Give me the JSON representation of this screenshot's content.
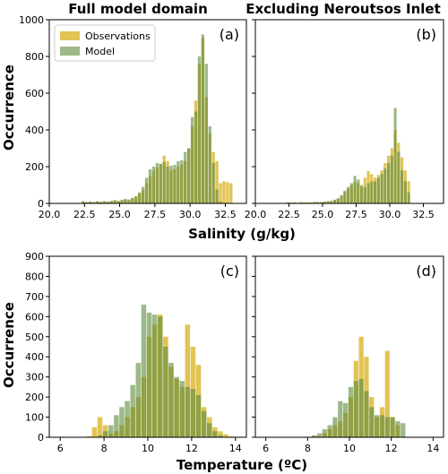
{
  "figure": {
    "col_titles": [
      "Full model domain",
      "Excluding Neroutsos Inlet"
    ],
    "row_ylabel": "Occurrence",
    "top_xlabel": "Salinity (g/kg)",
    "bottom_xlabel": "Temperature (ºC)"
  },
  "colors": {
    "obs": "#d9b52b",
    "model": "#5b8a3a",
    "overlap": "#7a7a1c"
  },
  "chart_data": [
    {
      "type": "bar",
      "panel_label": "(a)",
      "legend": [
        "Observations",
        "Model"
      ],
      "legend_position": "top-left",
      "xlim": [
        20.0,
        34.0
      ],
      "ylim": [
        0,
        1000
      ],
      "xticks": [
        "20.0",
        "22.5",
        "25.0",
        "27.5",
        "30.0",
        "32.5"
      ],
      "yticks": [
        "0",
        "200",
        "400",
        "600",
        "800",
        "1000"
      ],
      "bin_start": 22.3,
      "bin_width": 0.25,
      "series": [
        {
          "name": "Observations",
          "values": [
            10,
            5,
            8,
            6,
            10,
            8,
            10,
            6,
            12,
            15,
            12,
            16,
            22,
            18,
            28,
            35,
            55,
            70,
            110,
            150,
            175,
            195,
            215,
            260,
            230,
            180,
            185,
            200,
            210,
            230,
            300,
            420,
            560,
            760,
            900,
            580,
            380,
            280,
            230,
            110,
            120,
            115,
            110
          ]
        },
        {
          "name": "Model",
          "values": [
            12,
            8,
            10,
            8,
            12,
            8,
            12,
            10,
            14,
            18,
            14,
            20,
            24,
            22,
            30,
            40,
            60,
            90,
            140,
            185,
            200,
            220,
            215,
            225,
            200,
            205,
            210,
            230,
            235,
            280,
            300,
            470,
            500,
            800,
            920,
            760,
            420,
            220,
            75,
            10,
            0,
            0,
            0
          ]
        }
      ]
    },
    {
      "type": "bar",
      "panel_label": "(b)",
      "xlim": [
        20.0,
        34.0
      ],
      "ylim": [
        0,
        1000
      ],
      "xticks": [
        "20.0",
        "22.5",
        "25.0",
        "27.5",
        "30.0",
        "32.5"
      ],
      "yticks": [
        "0",
        "200",
        "400",
        "600",
        "800",
        "1000"
      ],
      "bin_start": 22.3,
      "bin_width": 0.25,
      "series": [
        {
          "name": "Observations",
          "values": [
            5,
            3,
            4,
            3,
            6,
            4,
            5,
            4,
            6,
            6,
            5,
            8,
            10,
            12,
            18,
            25,
            40,
            60,
            80,
            100,
            120,
            110,
            90,
            140,
            175,
            160,
            140,
            155,
            180,
            220,
            260,
            300,
            400,
            330,
            250,
            180,
            120,
            0,
            0,
            0,
            0,
            0,
            0
          ]
        },
        {
          "name": "Model",
          "values": [
            6,
            5,
            6,
            4,
            7,
            5,
            6,
            5,
            8,
            8,
            7,
            10,
            12,
            14,
            20,
            28,
            45,
            70,
            90,
            110,
            150,
            130,
            100,
            90,
            110,
            120,
            120,
            140,
            160,
            190,
            220,
            260,
            520,
            280,
            180,
            120,
            60,
            0,
            0,
            0,
            0,
            0,
            0
          ]
        }
      ]
    },
    {
      "type": "bar",
      "panel_label": "(c)",
      "xlim": [
        5.5,
        14.5
      ],
      "ylim": [
        0,
        900
      ],
      "xticks": [
        "6",
        "8",
        "10",
        "12",
        "14"
      ],
      "yticks": [
        "0",
        "100",
        "200",
        "300",
        "400",
        "500",
        "600",
        "700",
        "800",
        "900"
      ],
      "bin_start": 7.2,
      "bin_width": 0.25,
      "series": [
        {
          "name": "Observations",
          "values": [
            5,
            50,
            100,
            60,
            20,
            30,
            60,
            100,
            150,
            200,
            300,
            500,
            560,
            610,
            500,
            350,
            290,
            250,
            560,
            450,
            360,
            150,
            100,
            50,
            30,
            15,
            5
          ]
        },
        {
          "name": "Model",
          "values": [
            0,
            0,
            10,
            30,
            60,
            110,
            150,
            180,
            260,
            370,
            660,
            620,
            610,
            600,
            450,
            370,
            300,
            280,
            250,
            240,
            210,
            130,
            70,
            30,
            10,
            0,
            0
          ]
        }
      ]
    },
    {
      "type": "bar",
      "panel_label": "(d)",
      "xlim": [
        5.5,
        14.5
      ],
      "ylim": [
        0,
        900
      ],
      "xticks": [
        "6",
        "8",
        "10",
        "12",
        "14"
      ],
      "yticks": [
        "0",
        "100",
        "200",
        "300",
        "400",
        "500",
        "600",
        "700",
        "800",
        "900"
      ],
      "bin_start": 7.2,
      "bin_width": 0.25,
      "series": [
        {
          "name": "Observations",
          "values": [
            0,
            0,
            0,
            0,
            5,
            5,
            20,
            40,
            60,
            80,
            120,
            200,
            380,
            500,
            400,
            200,
            100,
            150,
            430,
            100,
            60,
            5,
            0,
            0,
            0,
            0,
            0
          ]
        },
        {
          "name": "Model",
          "values": [
            0,
            0,
            0,
            2,
            10,
            20,
            40,
            60,
            100,
            180,
            170,
            250,
            280,
            290,
            230,
            150,
            110,
            110,
            100,
            100,
            80,
            70,
            0,
            0,
            0,
            0,
            0
          ]
        }
      ]
    }
  ]
}
